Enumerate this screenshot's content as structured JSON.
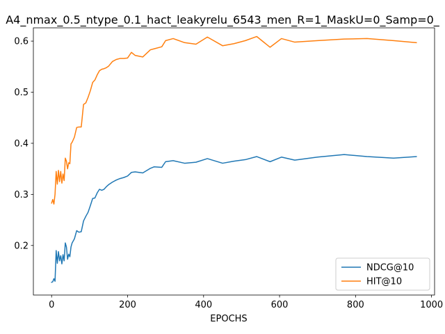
{
  "chart_data": {
    "type": "line",
    "title": "A4_nmax_0.5_ntype_0.1_hact_leakyrelu_6543_men_R=1_MaskU=0_Samp=0_",
    "xlabel": "EPOCHS",
    "ylabel": "",
    "xlim": [
      -48,
      1008
    ],
    "ylim": [
      0.103,
      0.626
    ],
    "xticks": [
      0,
      200,
      400,
      600,
      800,
      1000
    ],
    "yticks": [
      0.2,
      0.3,
      0.4,
      0.5,
      0.6
    ],
    "grid": false,
    "legend_position": "lower-right",
    "series": [
      {
        "name": "NDCG@10",
        "color": "#1f77b4",
        "x": [
          0,
          3,
          6,
          9,
          12,
          15,
          18,
          21,
          24,
          27,
          30,
          33,
          36,
          39,
          42,
          45,
          48,
          51,
          54,
          60,
          66,
          72,
          78,
          84,
          90,
          96,
          102,
          108,
          114,
          120,
          126,
          132,
          138,
          144,
          150,
          160,
          170,
          180,
          190,
          200,
          210,
          220,
          240,
          260,
          270,
          290,
          300,
          320,
          350,
          380,
          410,
          450,
          480,
          510,
          540,
          575,
          605,
          640,
          700,
          770,
          830,
          900,
          960
        ],
        "y": [
          0.128,
          0.129,
          0.135,
          0.13,
          0.19,
          0.165,
          0.188,
          0.17,
          0.18,
          0.164,
          0.182,
          0.17,
          0.205,
          0.197,
          0.173,
          0.183,
          0.178,
          0.197,
          0.205,
          0.213,
          0.229,
          0.226,
          0.227,
          0.248,
          0.257,
          0.265,
          0.278,
          0.292,
          0.293,
          0.303,
          0.31,
          0.308,
          0.31,
          0.315,
          0.319,
          0.324,
          0.328,
          0.331,
          0.333,
          0.336,
          0.343,
          0.344,
          0.342,
          0.351,
          0.354,
          0.353,
          0.364,
          0.366,
          0.361,
          0.363,
          0.37,
          0.361,
          0.365,
          0.368,
          0.374,
          0.364,
          0.373,
          0.367,
          0.373,
          0.378,
          0.374,
          0.371,
          0.374
        ]
      },
      {
        "name": "HIT@10",
        "color": "#ff7f0e",
        "x": [
          0,
          3,
          6,
          9,
          12,
          15,
          18,
          21,
          24,
          27,
          30,
          33,
          36,
          39,
          42,
          45,
          48,
          51,
          54,
          60,
          66,
          72,
          78,
          84,
          90,
          96,
          102,
          108,
          114,
          120,
          126,
          132,
          138,
          144,
          150,
          160,
          170,
          180,
          190,
          200,
          210,
          220,
          240,
          260,
          270,
          290,
          300,
          320,
          350,
          380,
          410,
          450,
          480,
          510,
          540,
          575,
          605,
          640,
          700,
          770,
          830,
          900,
          960
        ],
        "y": [
          0.283,
          0.29,
          0.281,
          0.3,
          0.345,
          0.32,
          0.347,
          0.325,
          0.345,
          0.322,
          0.34,
          0.327,
          0.371,
          0.365,
          0.35,
          0.362,
          0.36,
          0.399,
          0.402,
          0.412,
          0.431,
          0.432,
          0.432,
          0.476,
          0.479,
          0.49,
          0.503,
          0.519,
          0.524,
          0.534,
          0.542,
          0.545,
          0.546,
          0.548,
          0.551,
          0.56,
          0.564,
          0.566,
          0.566,
          0.567,
          0.578,
          0.572,
          0.569,
          0.583,
          0.585,
          0.589,
          0.601,
          0.605,
          0.597,
          0.594,
          0.608,
          0.591,
          0.595,
          0.601,
          0.609,
          0.588,
          0.605,
          0.598,
          0.601,
          0.604,
          0.605,
          0.601,
          0.597
        ]
      }
    ]
  }
}
